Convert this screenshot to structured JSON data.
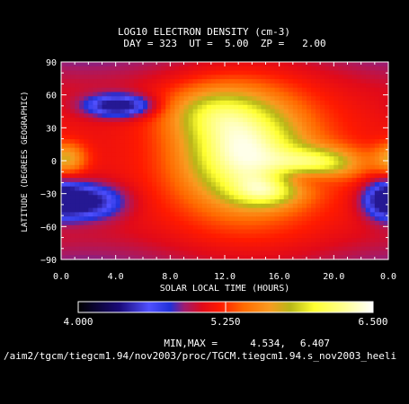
{
  "chart_data": {
    "type": "heatmap",
    "title": "LOG10 ELECTRON DENSITY (cm-3)",
    "subtitle": "DAY = 323  UT =  5.00  ZP =   2.00",
    "xlabel": "SOLAR LOCAL TIME (HOURS)",
    "ylabel": "LATITUDE (DEGREES GEOGRAPHIC)",
    "xlim": [
      0,
      24
    ],
    "ylim": [
      -90,
      90
    ],
    "x_ticks": [
      "0.0",
      "4.0",
      "8.0",
      "12.0",
      "16.0",
      "20.0",
      "0.0"
    ],
    "y_ticks": [
      "90",
      "60",
      "30",
      "0",
      "−30",
      "−60",
      "−90"
    ],
    "colorbar": {
      "range": [
        4.0,
        6.5
      ],
      "tick_labels": [
        "4.000",
        "5.250",
        "6.500"
      ],
      "stops": [
        {
          "v": 4.0,
          "color": "#000000"
        },
        {
          "v": 4.35,
          "color": "#1a0a78"
        },
        {
          "v": 4.6,
          "color": "#5050ff"
        },
        {
          "v": 4.78,
          "color": "#2030d8"
        },
        {
          "v": 4.9,
          "color": "#a01c6e"
        },
        {
          "v": 5.05,
          "color": "#e00a1a"
        },
        {
          "v": 5.2,
          "color": "#ff1a00"
        },
        {
          "v": 5.4,
          "color": "#ff6a00"
        },
        {
          "v": 5.62,
          "color": "#fa9a20"
        },
        {
          "v": 5.8,
          "color": "#b8b818"
        },
        {
          "v": 6.0,
          "color": "#ffff30"
        },
        {
          "v": 6.25,
          "color": "#ffff90"
        },
        {
          "v": 6.5,
          "color": "#ffffff"
        }
      ]
    },
    "field_shape": {
      "features": [
        {
          "name": "dayside-peak",
          "lt": 13.4,
          "lat": 8,
          "slt": 3.0,
          "slat": 32,
          "amp": 1.15
        },
        {
          "name": "north-crest",
          "lt": 11.0,
          "lat": 45,
          "slt": 2.4,
          "slat": 16,
          "amp": 0.45
        },
        {
          "name": "south-hook",
          "lt": 15.0,
          "lat": -28,
          "slt": 1.7,
          "slat": 10,
          "amp": 0.55
        },
        {
          "name": "east-tongue",
          "lt": 19.0,
          "lat": -2,
          "slt": 2.2,
          "slat": 10,
          "amp": 0.75
        },
        {
          "name": "dawn-ridge",
          "lt": 0.4,
          "lat": 2,
          "slt": 1.0,
          "slat": 10,
          "amp": 0.55
        },
        {
          "name": "north-trough",
          "lt": 4.2,
          "lat": 50,
          "slt": 1.7,
          "slat": 7,
          "amp": -0.85
        },
        {
          "name": "south-trough",
          "lt": 1.8,
          "lat": -37,
          "slt": 1.9,
          "slat": 11,
          "amp": -0.8
        },
        {
          "name": "dusk-trough",
          "lt": 23.8,
          "lat": -35,
          "slt": 1.1,
          "slat": 12,
          "amp": -0.65
        },
        {
          "name": "arc-gap",
          "lt": 17.5,
          "lat": -15,
          "slt": 1.7,
          "slat": 7,
          "amp": -0.35
        }
      ]
    },
    "colorbar_marker": 5.25
  },
  "stats": {
    "label": "MIN,MAX =",
    "min": "4.534,",
    "max": "6.407"
  },
  "filepath": "/aim2/tgcm/tiegcm1.94/nov2003/proc/TGCM.tiegcm1.94.s_nov2003_heeli"
}
